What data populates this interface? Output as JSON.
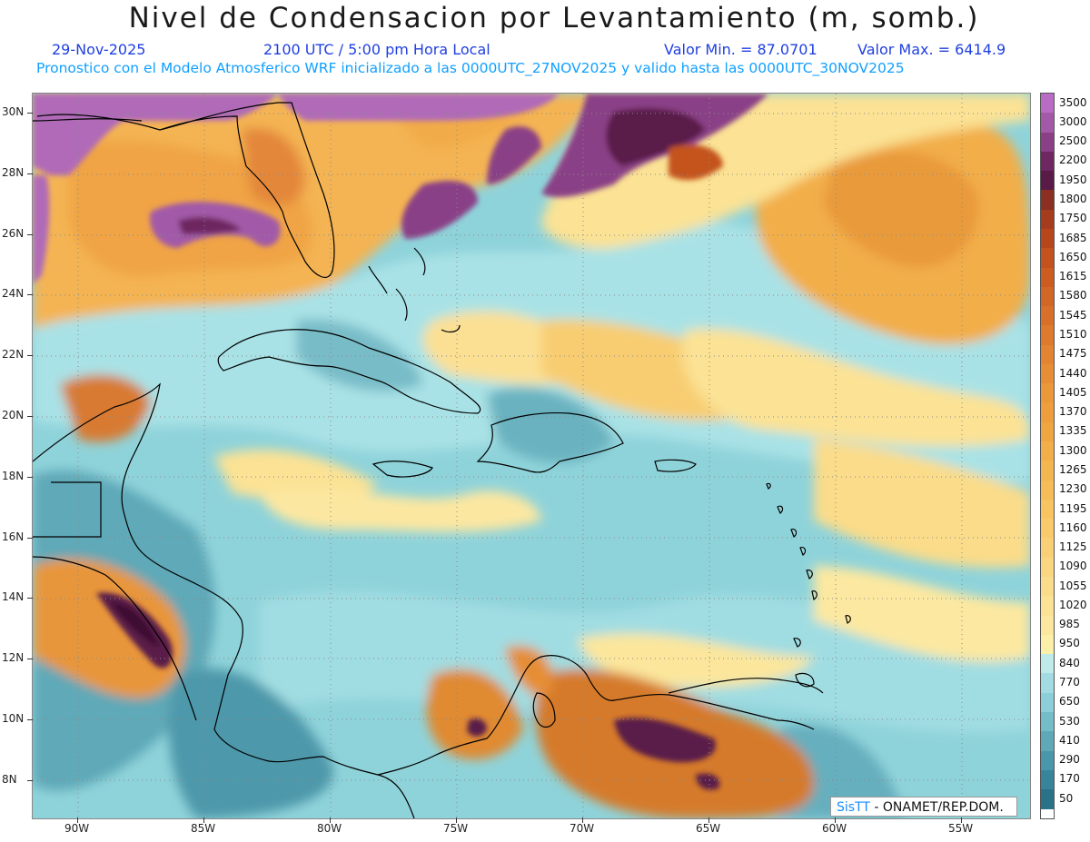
{
  "header": {
    "title": "Nivel de Condensacion por Levantamiento (m, somb.)",
    "date": "29-Nov-2025",
    "time": "2100 UTC / 5:00 pm Hora Local",
    "value_min": "Valor Min. = 87.0701",
    "value_max": "Valor Max. = 6414.9",
    "model_info": "Pronostico con el Modelo Atmosferico WRF inicializado a las 0000UTC_27NOV2025 y valido hasta las  0000UTC_30NOV2025"
  },
  "axes": {
    "lat_labels": [
      "30N",
      "28N",
      "26N",
      "24N",
      "22N",
      "20N",
      "18N",
      "16N",
      "14N",
      "12N",
      "10N",
      "8N"
    ],
    "lon_labels": [
      "90W",
      "85W",
      "80W",
      "75W",
      "70W",
      "65W",
      "60W",
      "55W"
    ]
  },
  "colorbar": {
    "labels": [
      "3500",
      "3000",
      "2500",
      "2200",
      "1950",
      "1800",
      "1750",
      "1685",
      "1650",
      "1615",
      "1580",
      "1545",
      "1510",
      "1475",
      "1440",
      "1405",
      "1370",
      "1335",
      "1300",
      "1265",
      "1230",
      "1195",
      "1160",
      "1125",
      "1090",
      "1055",
      "1020",
      "985",
      "950",
      "840",
      "770",
      "650",
      "530",
      "410",
      "290",
      "170",
      "50"
    ],
    "colors": [
      "#b86cc4",
      "#a25aa8",
      "#8a3f86",
      "#6e2760",
      "#5a1a48",
      "#8a2f22",
      "#a63c1e",
      "#b8461c",
      "#c4521e",
      "#cc5c20",
      "#d26626",
      "#d8702a",
      "#de7a2e",
      "#e28432",
      "#e68e36",
      "#ea983a",
      "#ee9e3c",
      "#f0a640",
      "#f2ae48",
      "#f4b650",
      "#f6bc58",
      "#f8c462",
      "#f8ca6c",
      "#fad076",
      "#fad680",
      "#fadc8a",
      "#fbe294",
      "#fbe89e",
      "#fcf0a8",
      "#bfeaea",
      "#a2dce2",
      "#8ccfd8",
      "#74bcc8",
      "#5ea8b8",
      "#4a96aa",
      "#38849a",
      "#2a7288"
    ]
  },
  "credit": {
    "brand": "SisTT",
    "org": " - ONAMET/REP.DOM."
  }
}
